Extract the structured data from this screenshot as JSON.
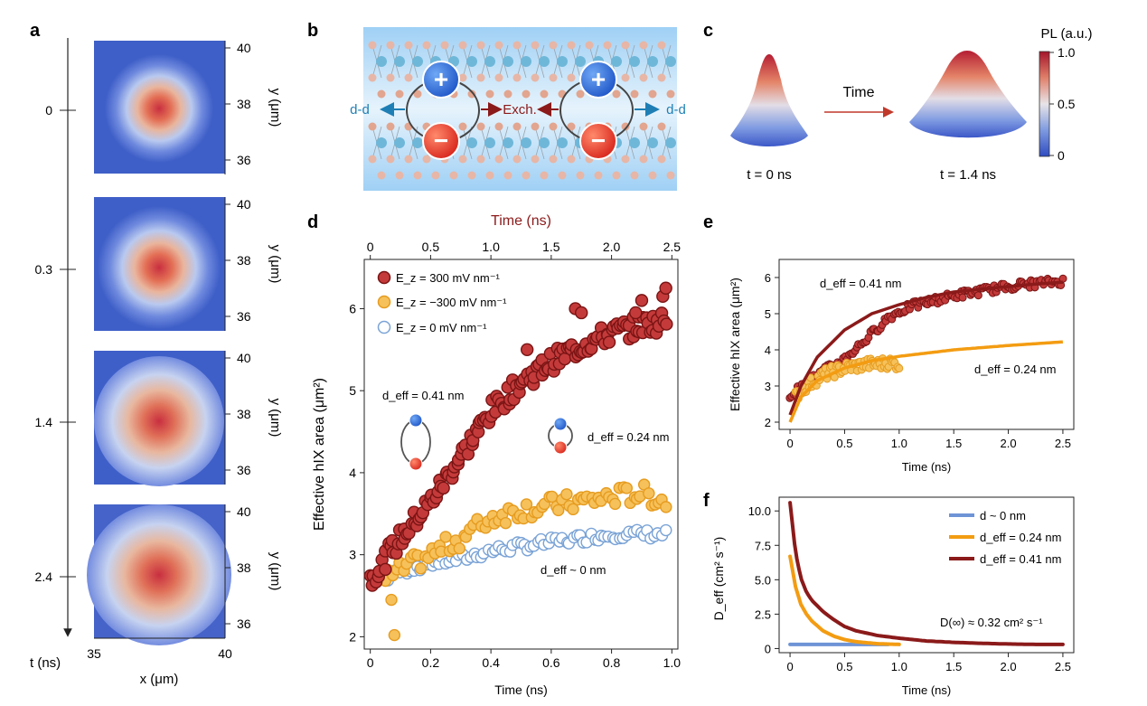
{
  "panel_labels": {
    "a": "a",
    "b": "b",
    "c": "c",
    "d": "d",
    "e": "e",
    "f": "f"
  },
  "colors": {
    "dark_red": "#8b1a1a",
    "red_marker": "#c43a3a",
    "orange": "#f39c12",
    "orange_marker": "#f6c15a",
    "blue_open": "#7aa3d6",
    "blue_line": "#6e94d6",
    "teal": "#1f7fb5"
  },
  "panel_a": {
    "time_axis_label": "t (ns)",
    "time_ticks": [
      "0",
      "0.3",
      "1.4",
      "2.4"
    ],
    "x_axis_label": "x (μm)",
    "x_ticks": [
      "35",
      "40"
    ],
    "y_axis_label": "y (μm)",
    "y_ticks": [
      "40",
      "38",
      "36"
    ]
  },
  "panel_b": {
    "plus": "+",
    "minus": "−",
    "dd_left": "d-d",
    "dd_right": "d-d",
    "exch": "Exch."
  },
  "panel_c": {
    "t0_label": "t = 0 ns",
    "t1_label": "t = 1.4 ns",
    "arrow_label": "Time",
    "colorbar_title": "PL (a.u.)",
    "colorbar_ticks": [
      "1.0",
      "0.5",
      "0"
    ]
  },
  "chart_data": [
    {
      "id": "panel-d",
      "type": "scatter",
      "title": "",
      "xlabel": "Time (ns)",
      "x2label": "Time (ns)",
      "ylabel": "Effective hIX area (μm²)",
      "xlim": [
        -0.02,
        1.02
      ],
      "x2lim": [
        -0.05,
        2.55
      ],
      "ylim": [
        1.85,
        6.6
      ],
      "x_ticks": [
        "0",
        "0.2",
        "0.4",
        "0.6",
        "0.8",
        "1.0"
      ],
      "x2_ticks": [
        "0",
        "0.5",
        "1.0",
        "1.5",
        "2.0",
        "2.5"
      ],
      "y_ticks": [
        "2",
        "3",
        "4",
        "5",
        "6"
      ],
      "legend": [
        "E_z = 300 mV nm⁻¹",
        "E_z = −300 mV nm⁻¹",
        "E_z = 0 mV nm⁻¹"
      ],
      "annotations": [
        "d_eff = 0.41 nm",
        "d_eff = 0.24 nm",
        "d_eff ~ 0 nm"
      ],
      "series": [
        {
          "name": "E_z = 300 mV nm⁻¹",
          "trend": {
            "x": [
              0.0,
              0.05,
              0.1,
              0.2,
              0.3,
              0.4,
              0.5,
              0.6,
              0.7,
              0.8,
              0.9,
              0.98
            ],
            "y": [
              2.7,
              2.95,
              3.2,
              3.65,
              4.2,
              4.75,
              5.1,
              5.35,
              5.55,
              5.7,
              5.8,
              5.85
            ]
          },
          "outliers": {
            "x": [
              0.52,
              0.68,
              0.7,
              0.88,
              0.9,
              0.97,
              0.98
            ],
            "y": [
              5.5,
              6.0,
              5.95,
              5.95,
              6.1,
              6.15,
              6.25
            ]
          }
        },
        {
          "name": "E_z = −300 mV nm⁻¹",
          "trend": {
            "x": [
              0.05,
              0.1,
              0.2,
              0.3,
              0.4,
              0.5,
              0.6,
              0.7,
              0.8,
              0.9,
              0.98
            ],
            "y": [
              2.7,
              2.8,
              3.0,
              3.2,
              3.45,
              3.55,
              3.6,
              3.65,
              3.7,
              3.75,
              3.65
            ]
          },
          "outliers": {
            "x": [
              0.07,
              0.08
            ],
            "y": [
              2.45,
              2.02
            ]
          }
        },
        {
          "name": "E_z = 0 mV nm⁻¹",
          "trend": {
            "x": [
              0.05,
              0.1,
              0.2,
              0.3,
              0.4,
              0.5,
              0.6,
              0.7,
              0.8,
              0.9,
              0.98
            ],
            "y": [
              2.7,
              2.8,
              2.9,
              2.95,
              3.05,
              3.1,
              3.15,
              3.2,
              3.25,
              3.25,
              3.25
            ]
          },
          "outliers": {
            "x": [],
            "y": []
          }
        }
      ]
    },
    {
      "id": "panel-e",
      "type": "scatter",
      "xlabel": "Time (ns)",
      "ylabel": "Effective hIX area (μm²)",
      "xlim": [
        -0.1,
        2.6
      ],
      "ylim": [
        1.8,
        6.5
      ],
      "x_ticks": [
        "0",
        "0.5",
        "1.0",
        "1.5",
        "2.0",
        "2.5"
      ],
      "y_ticks": [
        "2",
        "3",
        "4",
        "5",
        "6"
      ],
      "annotations": [
        "d_eff = 0.41 nm",
        "d_eff = 0.24 nm"
      ],
      "series": [
        {
          "name": "d_eff = 0.41 nm data",
          "x": [
            0.0,
            0.1,
            0.3,
            0.5,
            0.7,
            0.9,
            1.1,
            1.3,
            1.5,
            1.7,
            1.9,
            2.1,
            2.3,
            2.5
          ],
          "y": [
            2.75,
            2.95,
            3.4,
            3.75,
            4.3,
            4.9,
            5.2,
            5.35,
            5.5,
            5.6,
            5.7,
            5.8,
            5.85,
            5.9
          ]
        },
        {
          "name": "d_eff = 0.41 nm fit",
          "x": [
            0.0,
            0.1,
            0.25,
            0.5,
            0.75,
            1.0,
            1.25,
            1.5,
            1.75,
            2.0,
            2.25,
            2.5
          ],
          "y": [
            2.2,
            3.0,
            3.8,
            4.55,
            5.0,
            5.25,
            5.45,
            5.6,
            5.68,
            5.75,
            5.82,
            5.87
          ]
        },
        {
          "name": "d_eff = 0.24 nm data",
          "x": [
            0.05,
            0.1,
            0.2,
            0.3,
            0.4,
            0.5,
            0.6,
            0.7,
            0.8,
            0.9,
            1.0
          ],
          "y": [
            2.7,
            2.9,
            3.1,
            3.3,
            3.4,
            3.5,
            3.55,
            3.6,
            3.6,
            3.65,
            3.6
          ]
        },
        {
          "name": "d_eff = 0.24 nm fit",
          "x": [
            0.0,
            0.1,
            0.25,
            0.5,
            0.75,
            1.0,
            1.5,
            2.0,
            2.5
          ],
          "y": [
            2.0,
            2.7,
            3.15,
            3.5,
            3.7,
            3.82,
            4.0,
            4.12,
            4.22
          ]
        }
      ]
    },
    {
      "id": "panel-f",
      "type": "line",
      "xlabel": "Time (ns)",
      "ylabel": "D_eff (cm² s⁻¹)",
      "xlim": [
        -0.1,
        2.6
      ],
      "ylim": [
        -0.3,
        11.0
      ],
      "x_ticks": [
        "0",
        "0.5",
        "1.0",
        "1.5",
        "2.0",
        "2.5"
      ],
      "y_ticks": [
        "0",
        "2.5",
        "5.0",
        "7.5",
        "10.0"
      ],
      "legend": [
        "d ~ 0 nm",
        "d_eff = 0.24 nm",
        "d_eff = 0.41 nm"
      ],
      "annotation": "D(∞) ≈ 0.32 cm² s⁻¹",
      "series": [
        {
          "name": "d ~ 0 nm",
          "x": [
            0.0,
            0.9
          ],
          "y": [
            0.3,
            0.3
          ]
        },
        {
          "name": "d_eff = 0.24 nm",
          "x": [
            0.0,
            0.05,
            0.1,
            0.15,
            0.2,
            0.3,
            0.4,
            0.5,
            0.6,
            0.8,
            1.0
          ],
          "y": [
            6.7,
            4.5,
            3.2,
            2.5,
            2.0,
            1.3,
            0.9,
            0.65,
            0.5,
            0.35,
            0.3
          ]
        },
        {
          "name": "d_eff = 0.41 nm",
          "x": [
            0.0,
            0.05,
            0.1,
            0.15,
            0.2,
            0.3,
            0.4,
            0.5,
            0.6,
            0.8,
            1.0,
            1.25,
            1.5,
            1.75,
            2.0,
            2.25,
            2.5
          ],
          "y": [
            10.6,
            7.0,
            5.1,
            4.1,
            3.5,
            2.7,
            2.1,
            1.6,
            1.3,
            0.95,
            0.75,
            0.55,
            0.45,
            0.38,
            0.33,
            0.3,
            0.3
          ]
        }
      ]
    }
  ]
}
